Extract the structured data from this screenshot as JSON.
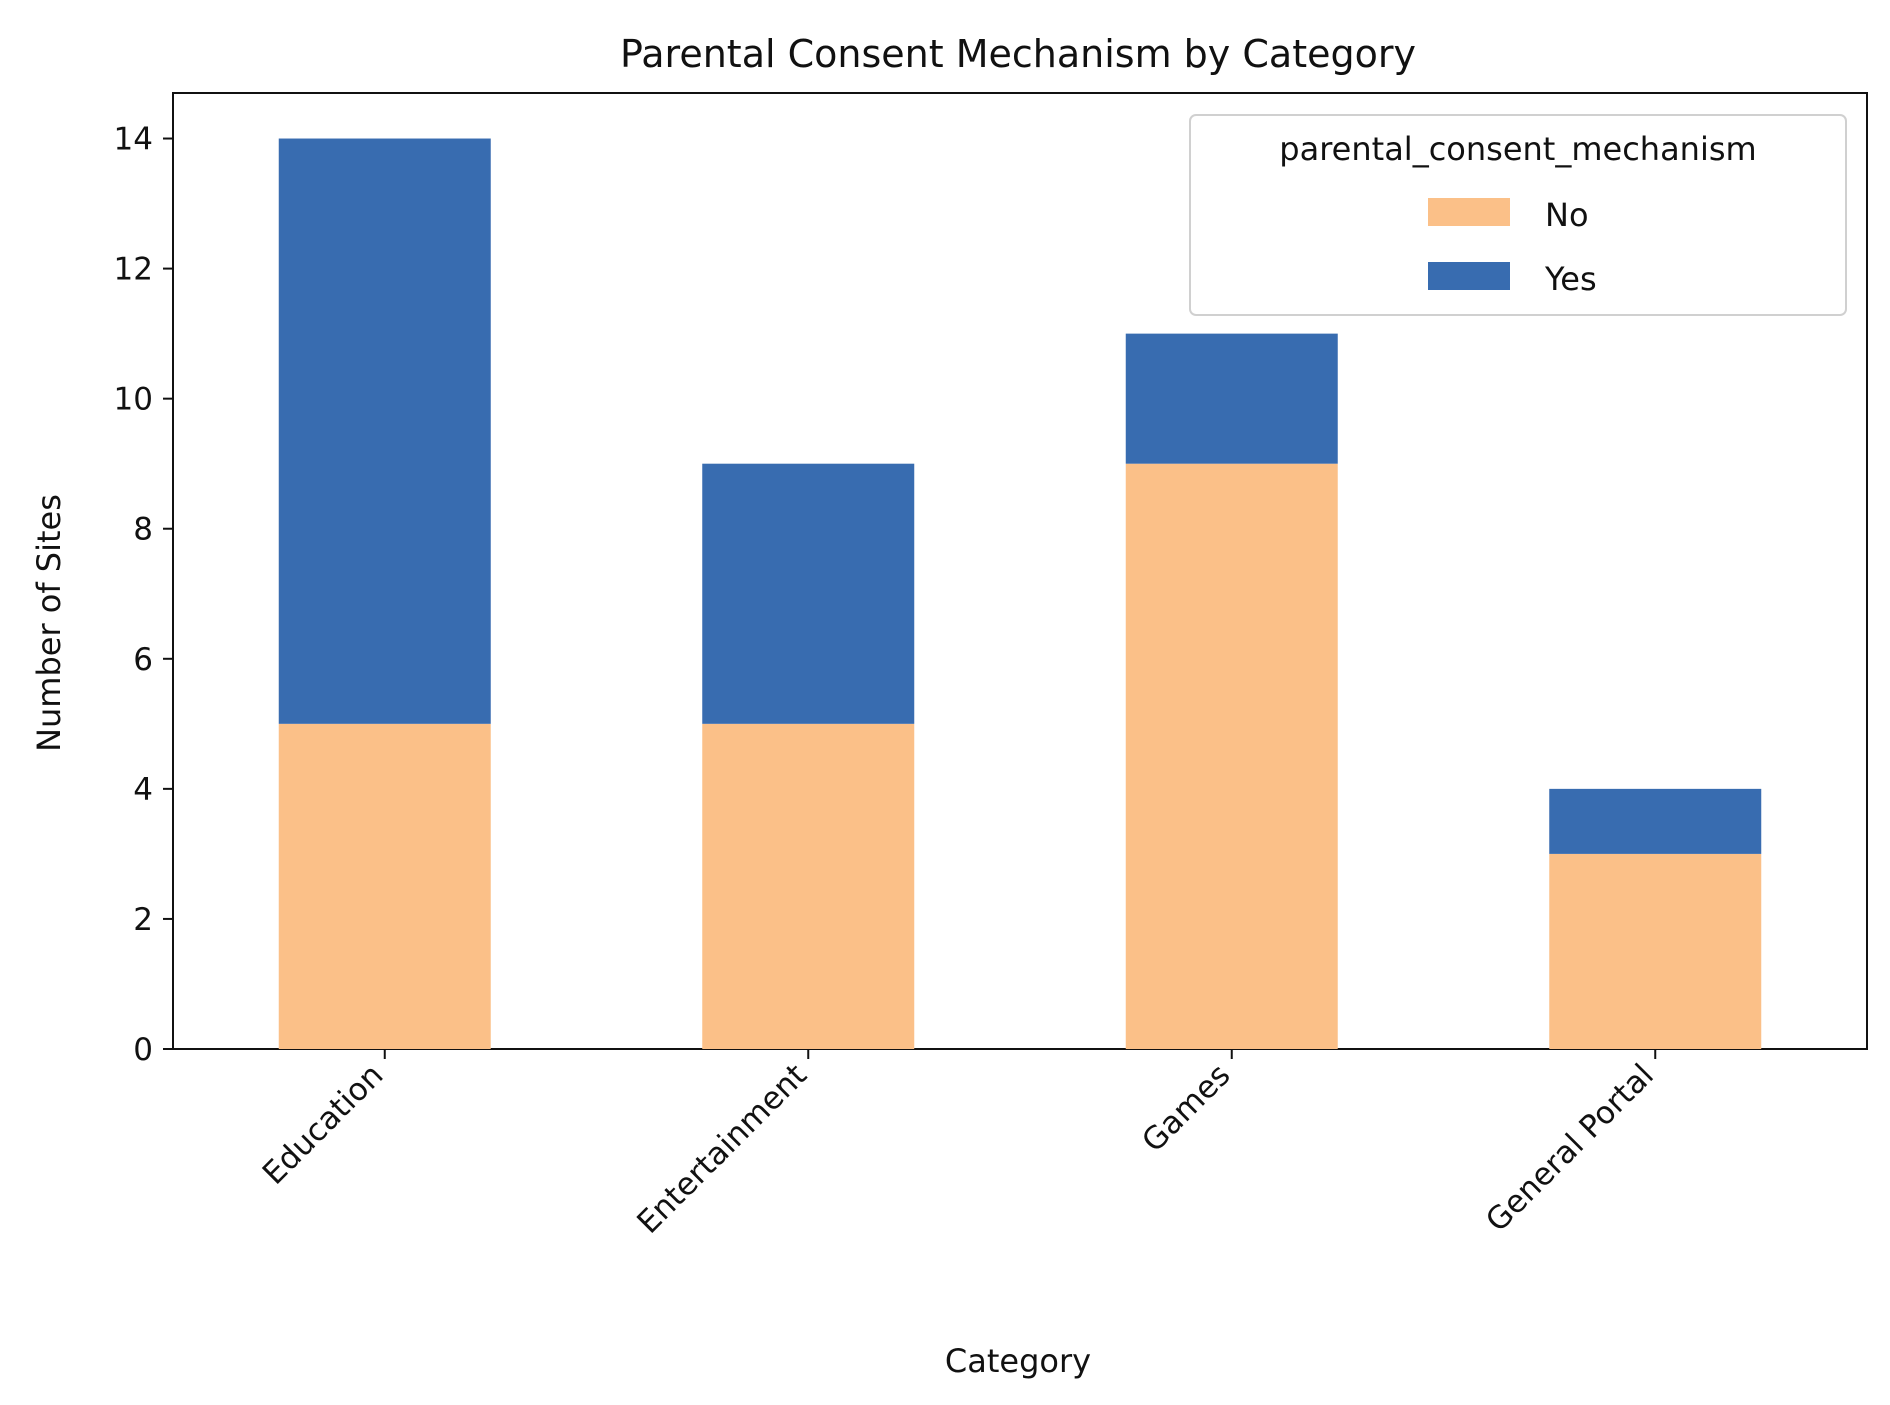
{
  "chart_data": {
    "type": "bar",
    "stacked": true,
    "title": "Parental Consent Mechanism by Category",
    "xlabel": "Category",
    "ylabel": "Number of Sites",
    "categories": [
      "Education",
      "Entertainment",
      "Games",
      "General Portal"
    ],
    "series": [
      {
        "name": "No",
        "values": [
          5,
          5,
          9,
          3
        ],
        "color": "#fbc088"
      },
      {
        "name": "Yes",
        "values": [
          9,
          4,
          2,
          1
        ],
        "color": "#386cb0"
      }
    ],
    "ylim": [
      0,
      14.7
    ],
    "yticks": [
      0,
      2,
      4,
      6,
      8,
      10,
      12,
      14
    ],
    "grid": false,
    "legend": {
      "title": "parental_consent_mechanism",
      "position": "top-right"
    }
  }
}
